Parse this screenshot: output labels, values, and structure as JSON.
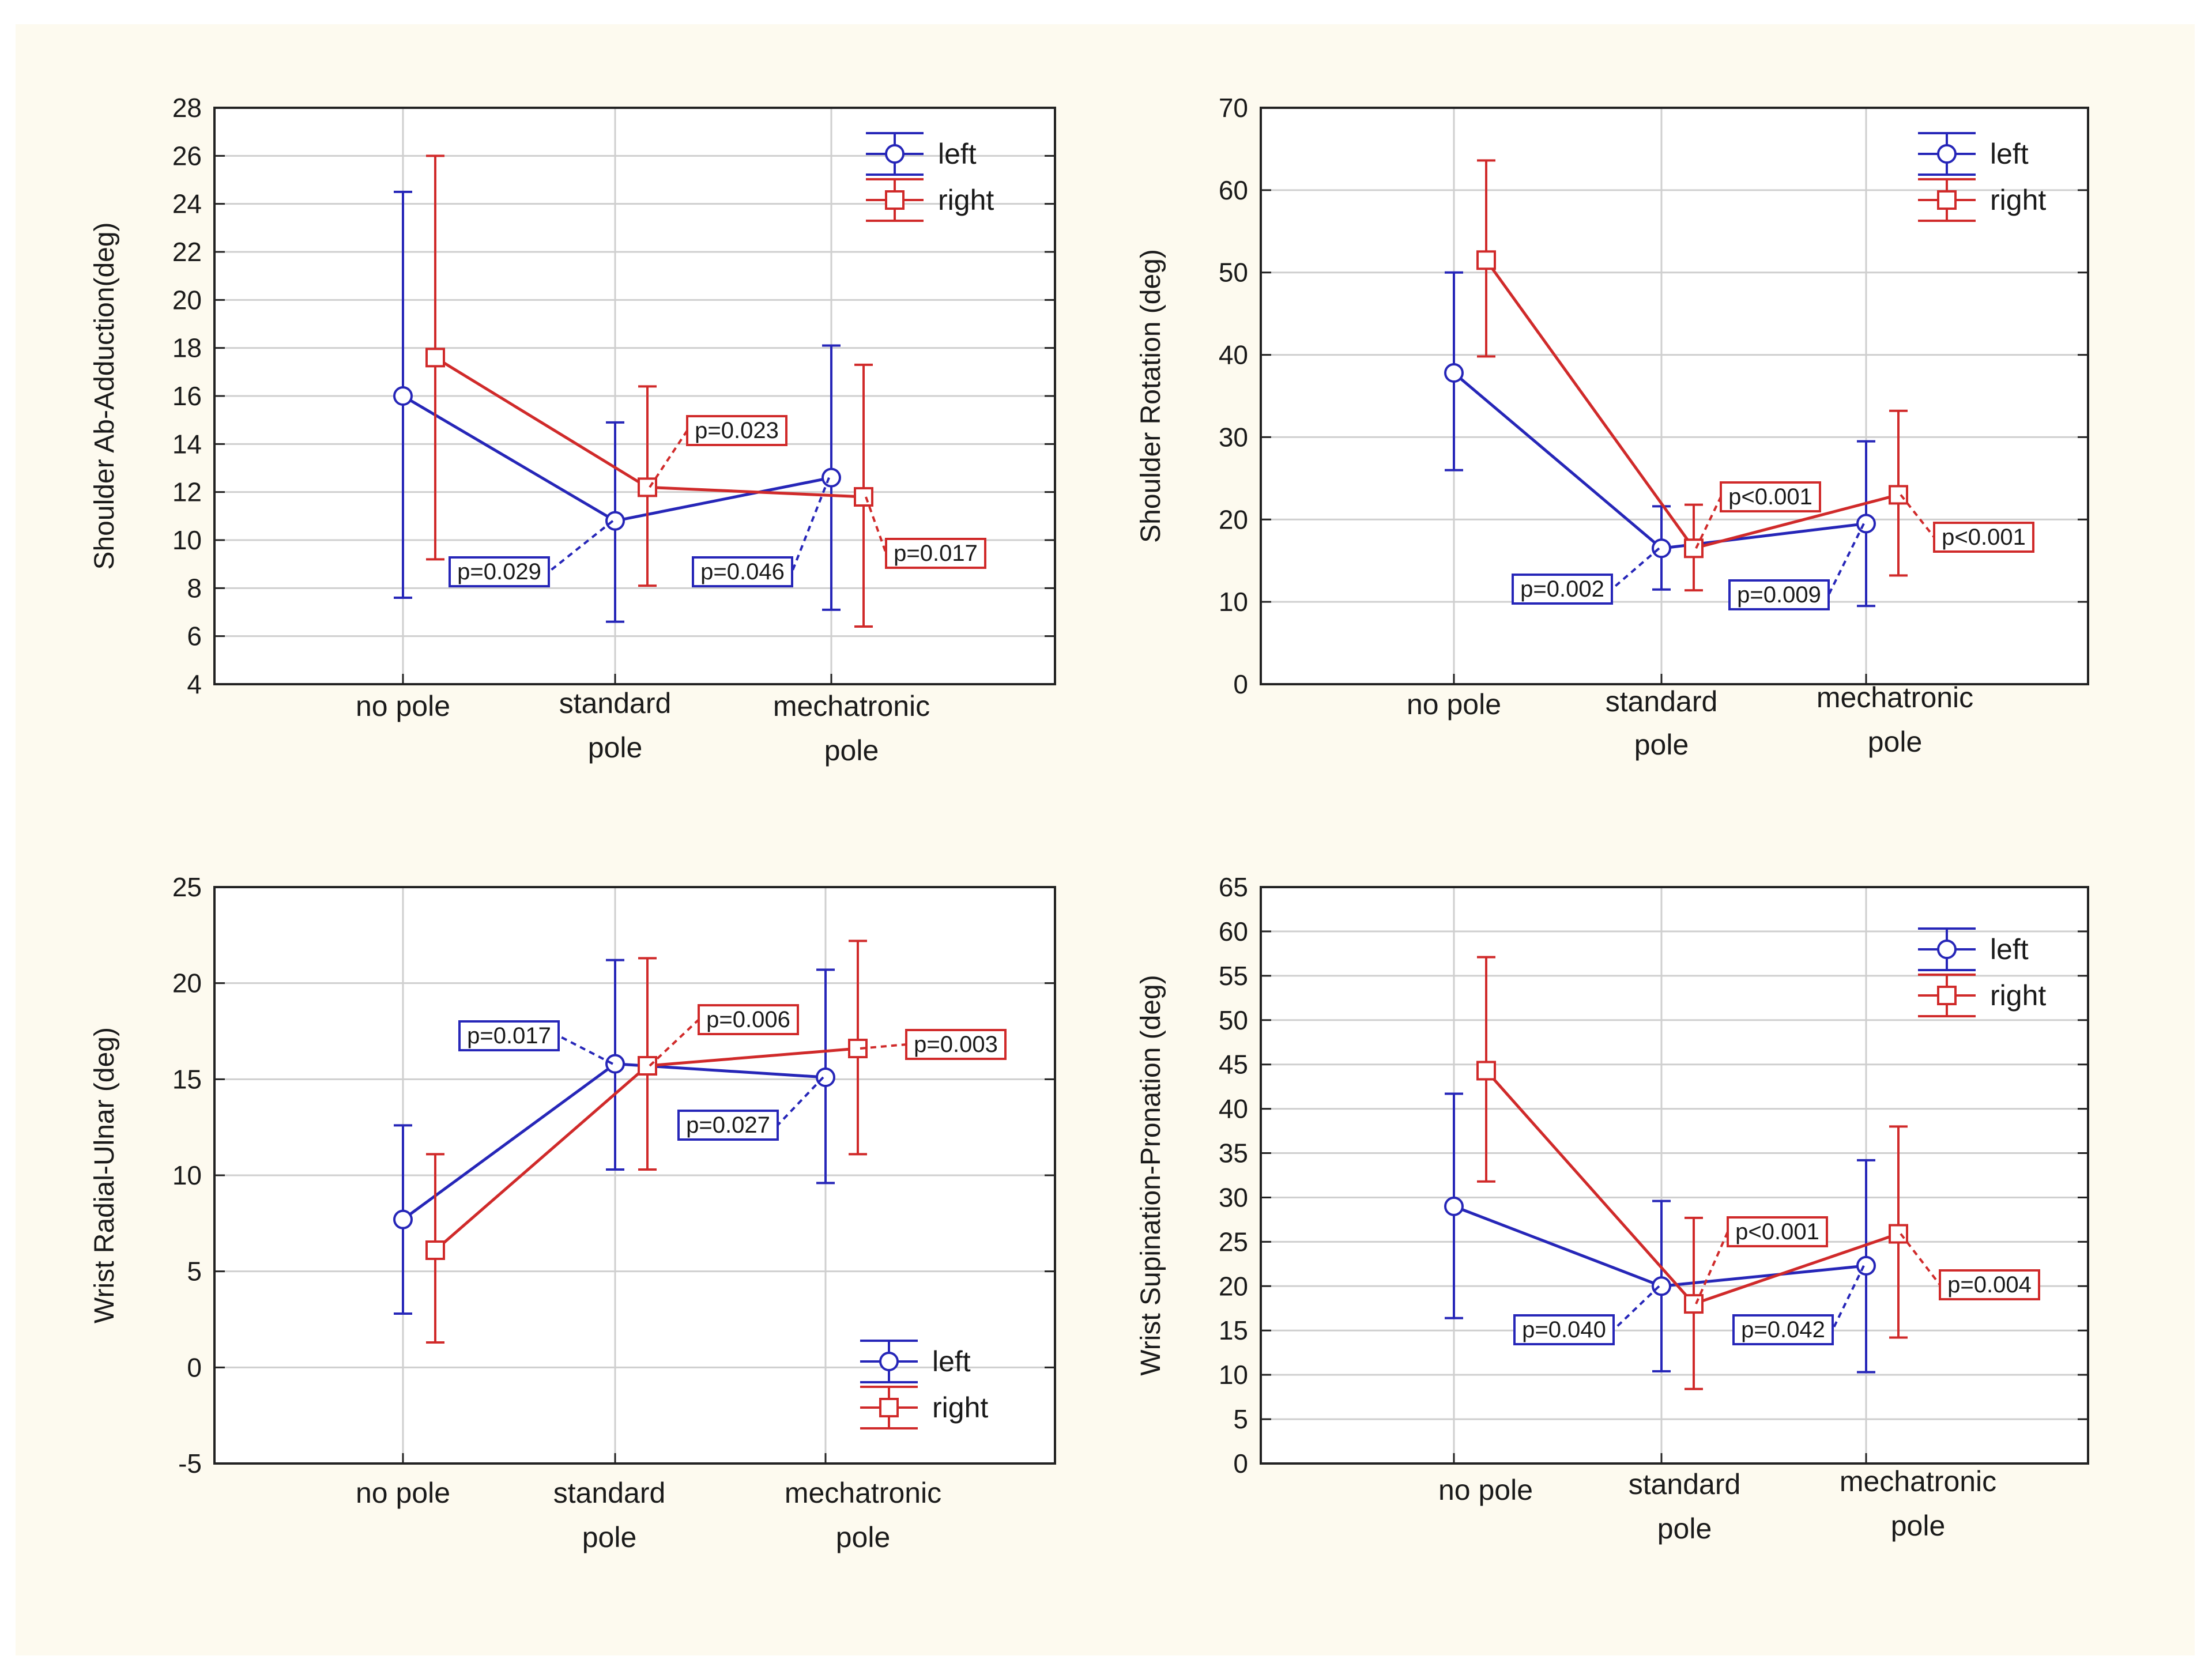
{
  "colors": {
    "left": "#2626b8",
    "right": "#d02a2a",
    "grid": "#cfcfcf",
    "axis": "#222222",
    "panel_bg": "#fdfaef"
  },
  "chart_data": [
    {
      "type": "line",
      "ylabel": "Shoulder Ab-Adduction(deg)",
      "ylim": [
        4,
        28
      ],
      "yticks": [
        "4",
        "6",
        "8",
        "10",
        "12",
        "14",
        "16",
        "18",
        "20",
        "22",
        "24",
        "26",
        "28"
      ],
      "categories": [
        [
          "no pole"
        ],
        [
          "standard",
          "pole"
        ],
        [
          "mechatronic",
          "pole"
        ]
      ],
      "legend": "top-right",
      "series": [
        {
          "name": "left",
          "values": [
            16.0,
            10.8,
            12.6
          ],
          "lower": [
            7.6,
            6.6,
            7.1
          ],
          "upper": [
            24.5,
            14.9,
            18.1
          ]
        },
        {
          "name": "right",
          "values": [
            17.6,
            12.2,
            11.8
          ],
          "lower": [
            9.2,
            8.1,
            6.4
          ],
          "upper": [
            26.0,
            16.4,
            17.3
          ]
        }
      ],
      "annotations": [
        {
          "text": "p=0.029",
          "series": "left",
          "point": 1
        },
        {
          "text": "p=0.046",
          "series": "left",
          "point": 2
        },
        {
          "text": "p=0.023",
          "series": "right",
          "point": 1
        },
        {
          "text": "p=0.017",
          "series": "right",
          "point": 2
        }
      ]
    },
    {
      "type": "line",
      "ylabel": "Shoulder Rotation (deg)",
      "ylim": [
        0,
        70
      ],
      "yticks": [
        "0",
        "10",
        "20",
        "30",
        "40",
        "50",
        "60",
        "70"
      ],
      "categories": [
        [
          "no pole"
        ],
        [
          "standard",
          "pole"
        ],
        [
          "mechatronic",
          "pole"
        ]
      ],
      "legend": "top-right",
      "series": [
        {
          "name": "left",
          "values": [
            37.8,
            16.5,
            19.5
          ],
          "lower": [
            26.0,
            11.5,
            9.5
          ],
          "upper": [
            50.0,
            21.6,
            29.5
          ]
        },
        {
          "name": "right",
          "values": [
            51.5,
            16.5,
            23.0
          ],
          "lower": [
            39.8,
            11.4,
            13.2
          ],
          "upper": [
            63.6,
            21.8,
            33.2
          ]
        }
      ],
      "annotations": [
        {
          "text": "p=0.002",
          "series": "left",
          "point": 1
        },
        {
          "text": "p=0.009",
          "series": "left",
          "point": 2
        },
        {
          "text": "p<0.001",
          "series": "right",
          "point": 1
        },
        {
          "text": "p<0.001",
          "series": "right",
          "point": 2
        }
      ]
    },
    {
      "type": "line",
      "ylabel": "Wrist Radial-Ulnar (deg)",
      "ylim": [
        -5,
        25
      ],
      "yticks": [
        "-5",
        "0",
        "5",
        "10",
        "15",
        "20",
        "25"
      ],
      "categories": [
        [
          "no pole"
        ],
        [
          "standard",
          "pole"
        ],
        [
          "mechatronic",
          "pole"
        ]
      ],
      "legend": "bottom-right",
      "series": [
        {
          "name": "left",
          "values": [
            7.7,
            15.8,
            15.1
          ],
          "lower": [
            2.8,
            10.3,
            9.6
          ],
          "upper": [
            12.6,
            21.2,
            20.7
          ]
        },
        {
          "name": "right",
          "values": [
            6.1,
            15.7,
            16.6
          ],
          "lower": [
            1.3,
            10.3,
            11.1
          ],
          "upper": [
            11.1,
            21.3,
            22.2
          ]
        }
      ],
      "annotations": [
        {
          "text": "p=0.017",
          "series": "left",
          "point": 1
        },
        {
          "text": "p=0.027",
          "series": "left",
          "point": 2
        },
        {
          "text": "p=0.006",
          "series": "right",
          "point": 1
        },
        {
          "text": "p=0.003",
          "series": "right",
          "point": 2
        }
      ]
    },
    {
      "type": "line",
      "ylabel": "Wrist Supination-Pronation (deg)",
      "ylim": [
        0,
        65
      ],
      "yticks": [
        "0",
        "5",
        "10",
        "15",
        "20",
        "25",
        "30",
        "35",
        "40",
        "45",
        "50",
        "55",
        "60",
        "65"
      ],
      "categories": [
        [
          "no pole"
        ],
        [
          "standard",
          "pole"
        ],
        [
          "mechatronic",
          "pole"
        ]
      ],
      "legend": "top-right",
      "series": [
        {
          "name": "left",
          "values": [
            29.0,
            20.0,
            22.3
          ],
          "lower": [
            16.4,
            10.4,
            10.3
          ],
          "upper": [
            41.7,
            29.6,
            34.2
          ]
        },
        {
          "name": "right",
          "values": [
            44.3,
            18.0,
            25.9
          ],
          "lower": [
            31.8,
            8.4,
            14.2
          ],
          "upper": [
            57.1,
            27.7,
            38.0
          ]
        }
      ],
      "annotations": [
        {
          "text": "p=0.040",
          "series": "left",
          "point": 1
        },
        {
          "text": "p=0.042",
          "series": "left",
          "point": 2
        },
        {
          "text": "p<0.001",
          "series": "right",
          "point": 1
        },
        {
          "text": "p=0.004",
          "series": "right",
          "point": 2
        }
      ]
    }
  ]
}
